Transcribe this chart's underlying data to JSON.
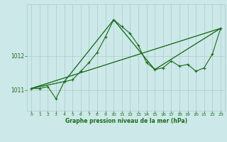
{
  "bg_color": "#cce8e8",
  "grid_color": "#aacccc",
  "line_color": "#1a6b1a",
  "xlabel": "Graphe pression niveau de la mer (hPa)",
  "xlim": [
    -0.5,
    23.5
  ],
  "ylim": [
    1010.4,
    1013.5
  ],
  "yticks": [
    1011,
    1012
  ],
  "xticks": [
    0,
    1,
    2,
    3,
    4,
    5,
    6,
    7,
    8,
    9,
    10,
    11,
    12,
    13,
    14,
    15,
    16,
    17,
    18,
    19,
    20,
    21,
    22,
    23
  ],
  "series_main": {
    "x": [
      0,
      1,
      2,
      3,
      4,
      5,
      6,
      7,
      8,
      9,
      10,
      11,
      12,
      13,
      14,
      15,
      16,
      17,
      18,
      19,
      20,
      21,
      22,
      23
    ],
    "y": [
      1011.05,
      1011.05,
      1011.1,
      1010.75,
      1011.25,
      1011.3,
      1011.55,
      1011.8,
      1012.1,
      1012.55,
      1013.05,
      1012.85,
      1012.65,
      1012.3,
      1011.8,
      1011.6,
      1011.65,
      1011.85,
      1011.7,
      1011.75,
      1011.55,
      1011.65,
      1012.05,
      1012.8
    ]
  },
  "series_smooth1": {
    "x": [
      0,
      4,
      10,
      15,
      23
    ],
    "y": [
      1011.05,
      1011.25,
      1013.05,
      1011.6,
      1012.8
    ]
  },
  "series_smooth2": {
    "x": [
      0,
      4,
      10,
      15,
      23
    ],
    "y": [
      1011.05,
      1011.25,
      1013.05,
      1011.6,
      1012.8
    ]
  },
  "series_line1": {
    "x": [
      0,
      23
    ],
    "y": [
      1011.05,
      1012.8
    ]
  },
  "series_line2": {
    "x": [
      0,
      23
    ],
    "y": [
      1011.05,
      1012.8
    ]
  }
}
